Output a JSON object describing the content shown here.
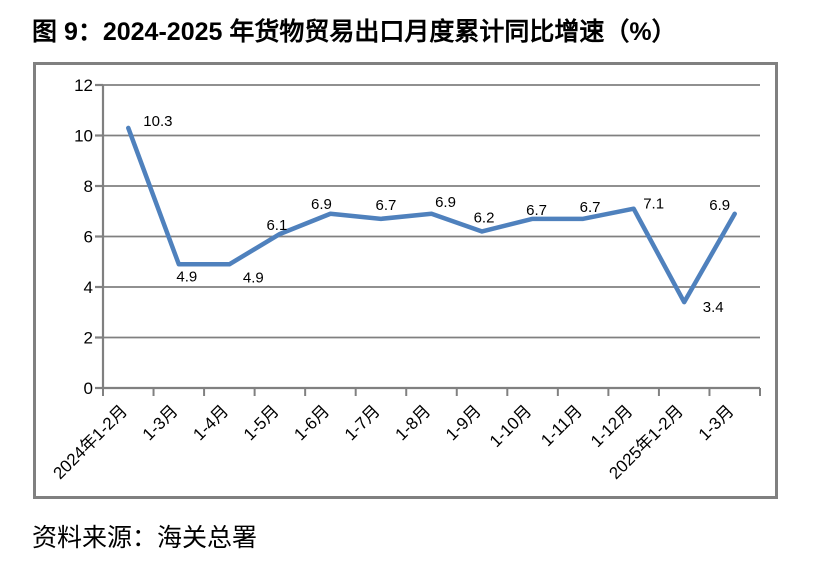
{
  "title": "图 9：2024-2025 年货物贸易出口月度累计同比增速（%）",
  "source": "资料来源：海关总署",
  "chart_data": {
    "type": "line",
    "title": "2024-2025 年货物贸易出口月度累计同比增速（%）",
    "categories": [
      "2024年1-2月",
      "1-3月",
      "1-4月",
      "1-5月",
      "1-6月",
      "1-7月",
      "1-8月",
      "1-9月",
      "1-10月",
      "1-11月",
      "1-12月",
      "2025年1-2月",
      "1-3月"
    ],
    "values": [
      10.3,
      4.9,
      4.9,
      6.1,
      6.9,
      6.7,
      6.9,
      6.2,
      6.7,
      6.7,
      7.1,
      3.4,
      6.9
    ],
    "xlabel": "",
    "ylabel": "",
    "ylim": [
      0,
      12
    ],
    "yticks": [
      0,
      2,
      4,
      6,
      8,
      10,
      12
    ],
    "grid": true,
    "legend": false,
    "line_color": "#4F81BD",
    "grid_color": "#808080",
    "axis_color": "#808080",
    "border_color": "#808080",
    "text_color": "#000000",
    "label_offsets": [
      [
        15,
        -2,
        "start"
      ],
      [
        8,
        17,
        "middle"
      ],
      [
        24,
        18,
        "middle"
      ],
      [
        -3,
        -4,
        "middle"
      ],
      [
        -9,
        -5,
        "middle"
      ],
      [
        5,
        -9,
        "middle"
      ],
      [
        14,
        -7,
        "middle"
      ],
      [
        2,
        -9,
        "middle"
      ],
      [
        4,
        -4,
        "middle"
      ],
      [
        7,
        -7,
        "middle"
      ],
      [
        20,
        0,
        "middle"
      ],
      [
        29,
        10,
        "middle"
      ],
      [
        -15,
        -4,
        "middle"
      ]
    ]
  }
}
